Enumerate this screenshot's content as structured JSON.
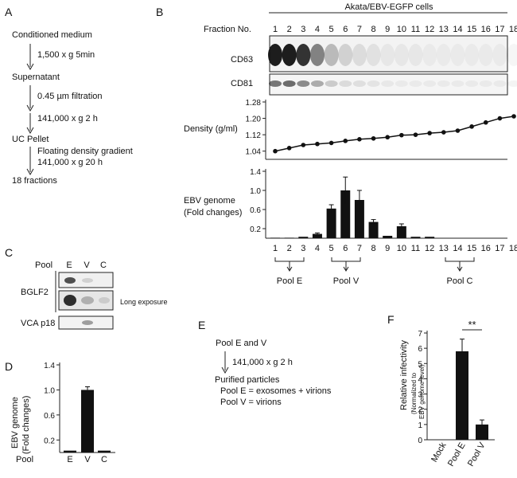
{
  "panels": {
    "a": "A",
    "b": "B",
    "c": "C",
    "d": "D",
    "e": "E",
    "f": "F"
  },
  "panel_a": {
    "steps": [
      "Conditioned medium",
      "Supernatant",
      "UC Pellet",
      "18 fractions"
    ],
    "arrows": [
      "1,500 x g   5min",
      "0.45 µm filtration",
      "141,000 x g   2 h",
      "Floating density gradient",
      "141,000 x g   20 h"
    ]
  },
  "panel_b": {
    "header": "Akata/EBV-EGFP cells",
    "fraction_label": "Fraction No.",
    "fractions": [
      "1",
      "2",
      "3",
      "4",
      "5",
      "6",
      "7",
      "8",
      "9",
      "10",
      "11",
      "12",
      "13",
      "14",
      "15",
      "16",
      "17",
      "18"
    ],
    "blot_cd63": "CD63",
    "blot_cd81": "CD81",
    "density_label": "Density (g/ml)",
    "genome_label_1": "EBV genome",
    "genome_label_2": "(Fold changes)",
    "pools": {
      "e": "Pool E",
      "v": "Pool V",
      "c": "Pool C"
    }
  },
  "panel_c": {
    "pool_label": "Pool",
    "lanes": [
      "E",
      "V",
      "C"
    ],
    "bglf2": "BGLF2",
    "long_exposure": "Long exposure",
    "vca": "VCA p18"
  },
  "panel_e": {
    "line1": "Pool E and V",
    "arrow": "141,000 x g   2 h",
    "line2": "Purified particles",
    "line3": "Pool E = exosomes + virions",
    "line4": "Pool V = virions"
  },
  "chart_data": [
    {
      "id": "density",
      "type": "line",
      "ylabel": "Density (g/ml)",
      "x": [
        1,
        2,
        3,
        4,
        5,
        6,
        7,
        8,
        9,
        10,
        11,
        12,
        13,
        14,
        15,
        16,
        17,
        18
      ],
      "values": [
        1.04,
        1.055,
        1.07,
        1.075,
        1.08,
        1.09,
        1.098,
        1.102,
        1.108,
        1.118,
        1.12,
        1.128,
        1.132,
        1.14,
        1.16,
        1.18,
        1.2,
        1.21
      ],
      "ylim": [
        1.0,
        1.28
      ],
      "yticks": [
        1.04,
        1.12,
        1.2,
        1.28
      ],
      "ytick_labels": [
        "1.04",
        "1.12",
        "1.20",
        "1.28"
      ]
    },
    {
      "id": "genome_fractions",
      "type": "bar",
      "ylabel": "EBV genome (Fold changes)",
      "categories": [
        "1",
        "2",
        "3",
        "4",
        "5",
        "6",
        "7",
        "8",
        "9",
        "10",
        "11",
        "12",
        "13",
        "14",
        "15",
        "16",
        "17",
        "18"
      ],
      "values": [
        0.01,
        0.01,
        0.03,
        0.09,
        0.62,
        1.0,
        0.8,
        0.34,
        0.05,
        0.25,
        0.03,
        0.03,
        0,
        0,
        0,
        0,
        0,
        0
      ],
      "errors": [
        0.005,
        0.005,
        0.01,
        0.02,
        0.08,
        0.28,
        0.2,
        0.05,
        0.01,
        0.05,
        0.01,
        0.01,
        0,
        0,
        0,
        0,
        0,
        0
      ],
      "ylim": [
        0,
        1.4
      ],
      "yticks": [
        0.2,
        0.6,
        1.0,
        1.4
      ],
      "ytick_labels": [
        "0.2",
        "0.6",
        "1.0",
        "1.4"
      ]
    },
    {
      "id": "genome_pools",
      "type": "bar",
      "ylabel": "EBV genome (Fold changes)",
      "xlabel": "Pool",
      "categories": [
        "E",
        "V",
        "C"
      ],
      "values": [
        0.03,
        1.0,
        0.03
      ],
      "errors": [
        0.005,
        0.05,
        0.005
      ],
      "ylim": [
        0,
        1.4
      ],
      "yticks": [
        0.2,
        0.6,
        1.0,
        1.4
      ],
      "ytick_labels": [
        "0.2",
        "0.6",
        "1.0",
        "1.4"
      ]
    },
    {
      "id": "infectivity",
      "type": "bar",
      "ylabel": "Relative infectivity",
      "ylabel_sub_1": "(Normalized to",
      "ylabel_sub_2": "EBV genome level)",
      "categories": [
        "Mock",
        "Pool E",
        "Pool V"
      ],
      "values": [
        0,
        5.8,
        1.0
      ],
      "errors": [
        0,
        0.8,
        0.3
      ],
      "ylim": [
        0,
        7
      ],
      "yticks": [
        0,
        1,
        2,
        3,
        4,
        5,
        6,
        7
      ],
      "ytick_labels": [
        "0",
        "1",
        "2",
        "3",
        "4",
        "5",
        "6",
        "7"
      ],
      "significance": "**"
    }
  ]
}
